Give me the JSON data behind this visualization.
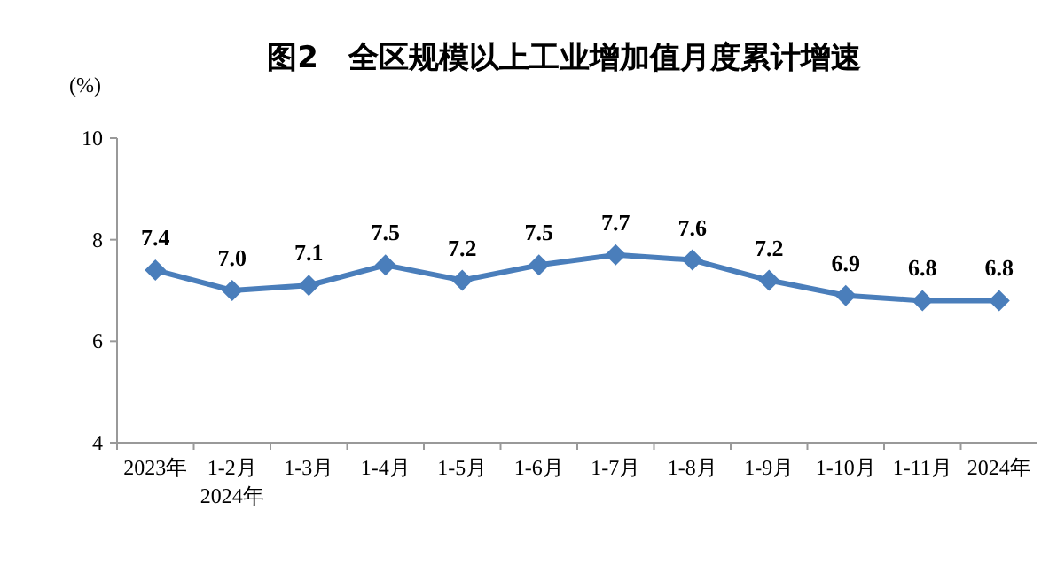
{
  "chart_data": {
    "type": "line",
    "title": "图2　全区规模以上工业增加值月度累计增速",
    "ylabel": "(%)",
    "categories": [
      "2023年",
      "1-2月",
      "1-3月",
      "1-4月",
      "1-5月",
      "1-6月",
      "1-7月",
      "1-8月",
      "1-9月",
      "1-10月",
      "1-11月",
      "2024年"
    ],
    "series": [
      {
        "color": "#4a7ebb",
        "values": [
          7.4,
          7.0,
          7.1,
          7.5,
          7.2,
          7.5,
          7.7,
          7.6,
          7.2,
          6.9,
          6.8,
          6.8
        ],
        "value_labels": [
          "7.4",
          "7.0",
          "7.1",
          "7.5",
          "7.2",
          "7.5",
          "7.7",
          "7.6",
          "7.2",
          "6.9",
          "6.8",
          "6.8"
        ]
      }
    ],
    "ylim": [
      4,
      10
    ],
    "yticks": [
      4,
      6,
      8,
      10
    ],
    "marker": "diamond",
    "grid": false,
    "annotations": [
      "2024年"
    ]
  }
}
